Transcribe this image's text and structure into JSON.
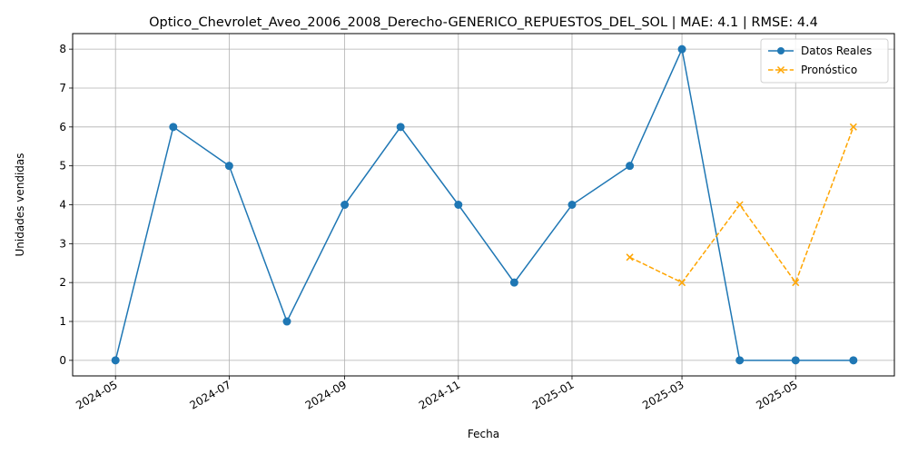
{
  "chart_data": {
    "type": "line",
    "title": "Optico_Chevrolet_Aveo_2006_2008_Derecho-GENERICO_REPUESTOS_DEL_SOL | MAE: 4.1 | RMSE: 4.4",
    "xlabel": "Fecha",
    "ylabel": "Unidades vendidas",
    "ylim": [
      -0.4,
      8.4
    ],
    "xlim": [
      "2024-04-08",
      "2025-06-23"
    ],
    "grid": true,
    "legend_position": "top-right",
    "x_ticks": [
      "2024-05",
      "2024-07",
      "2024-09",
      "2024-11",
      "2025-01",
      "2025-03",
      "2025-05"
    ],
    "y_ticks": [
      0,
      1,
      2,
      3,
      4,
      5,
      6,
      7,
      8
    ],
    "series": [
      {
        "name": "Datos Reales",
        "color": "#1f77b4",
        "marker": "circle",
        "line_style": "solid",
        "x": [
          "2024-05-01",
          "2024-06-01",
          "2024-07-01",
          "2024-08-01",
          "2024-09-01",
          "2024-10-01",
          "2024-11-01",
          "2024-12-01",
          "2025-01-01",
          "2025-02-01",
          "2025-03-01",
          "2025-04-01",
          "2025-05-01",
          "2025-06-01"
        ],
        "values": [
          0,
          6,
          5,
          1,
          4,
          6,
          4,
          2,
          4,
          5,
          8,
          0,
          0,
          0
        ]
      },
      {
        "name": "Pronóstico",
        "color": "#ffa500",
        "marker": "x",
        "line_style": "dashed",
        "x": [
          "2025-02-01",
          "2025-03-01",
          "2025-04-01",
          "2025-05-01",
          "2025-06-01"
        ],
        "values": [
          2.65,
          2.0,
          4.0,
          2.0,
          6.0
        ]
      }
    ]
  }
}
